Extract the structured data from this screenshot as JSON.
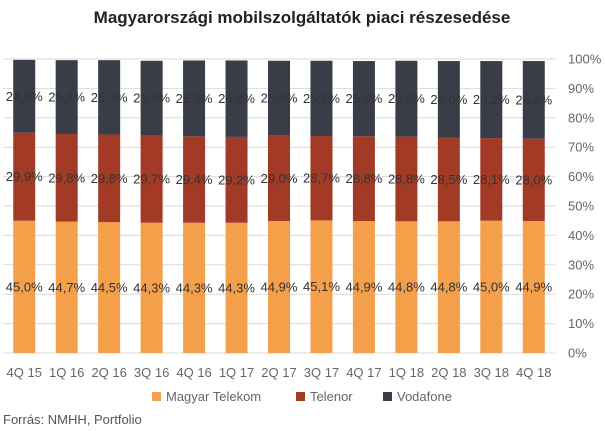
{
  "chart_data": {
    "type": "bar",
    "stacked": true,
    "title": "Magyarországi mobilszolgáltatók piaci részesedése",
    "categories": [
      "4Q 15",
      "1Q 16",
      "2Q 16",
      "3Q 16",
      "4Q 16",
      "1Q 17",
      "2Q 17",
      "3Q 17",
      "4Q 17",
      "1Q 18",
      "2Q 18",
      "3Q 18",
      "4Q 18"
    ],
    "series": [
      {
        "name": "Magyar Telekom",
        "color": "#F4A04B",
        "values": [
          45.0,
          44.7,
          44.5,
          44.3,
          44.3,
          44.3,
          44.9,
          45.1,
          44.9,
          44.8,
          44.8,
          45.0,
          44.9
        ],
        "labels": [
          "45,0%",
          "44,7%",
          "44,5%",
          "44,3%",
          "44,3%",
          "44,3%",
          "44,9%",
          "45,1%",
          "44,9%",
          "44,8%",
          "44,8%",
          "45,0%",
          "44,9%"
        ]
      },
      {
        "name": "Telenor",
        "color": "#A33A26",
        "values": [
          29.9,
          29.8,
          29.8,
          29.7,
          29.4,
          29.2,
          29.0,
          28.7,
          28.8,
          28.8,
          28.5,
          28.1,
          28.0
        ],
        "labels": [
          "29,9%",
          "29,8%",
          "29,8%",
          "29,7%",
          "29,4%",
          "29,2%",
          "29,0%",
          "28,7%",
          "28,8%",
          "28,8%",
          "28,5%",
          "28,1%",
          "28,0%"
        ]
      },
      {
        "name": "Vodafone",
        "color": "#383D47",
        "values": [
          24.8,
          25.1,
          25.3,
          25.4,
          25.8,
          26.0,
          25.5,
          25.6,
          25.6,
          25.8,
          26.0,
          26.2,
          26.4
        ],
        "labels": [
          "24,8%",
          "25,1%",
          "25,3%",
          "25,4%",
          "25,8%",
          "26,0%",
          "25,5%",
          "25,6%",
          "25,6%",
          "25,8%",
          "26,0%",
          "26,2%",
          "26,4%"
        ]
      }
    ],
    "y_ticks": [
      "0%",
      "10%",
      "20%",
      "30%",
      "40%",
      "50%",
      "60%",
      "70%",
      "80%",
      "90%",
      "100%"
    ],
    "ylim": [
      0,
      100
    ],
    "y_axis_position": "right",
    "grid": true,
    "legend": "bottom-center",
    "source": "Forrás: NMHH, Portfolio"
  }
}
